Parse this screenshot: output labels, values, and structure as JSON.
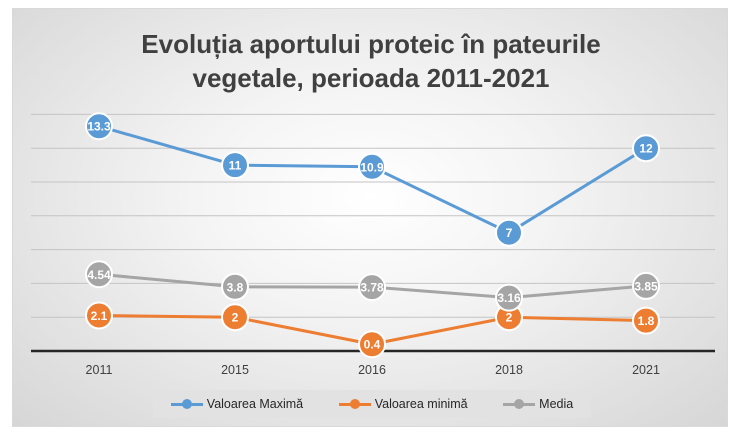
{
  "chart_data": {
    "type": "line",
    "title": "Evoluția aportului proteic în pateurile vegetale, perioada 2011-2021",
    "title_lines": [
      "Evoluția aportului proteic în pateurile",
      "vegetale, perioada 2011-2021"
    ],
    "categories": [
      "2011",
      "2015",
      "2016",
      "2018",
      "2021"
    ],
    "series": [
      {
        "name": "Valoarea Maximă",
        "color": "#5b9bd5",
        "values": [
          13.3,
          11,
          10.9,
          7,
          12
        ],
        "labels": [
          "13.3",
          "11",
          "10.9",
          "7",
          "12"
        ]
      },
      {
        "name": "Valoarea minimă",
        "color": "#ed7d31",
        "values": [
          2.1,
          2,
          0.4,
          2,
          1.8
        ],
        "labels": [
          "2.1",
          "2",
          "0.4",
          "2",
          "1.8"
        ]
      },
      {
        "name": "Media",
        "color": "#a5a5a5",
        "values": [
          4.54,
          3.8,
          3.78,
          3.16,
          3.85
        ],
        "labels": [
          "4.54",
          "3.8",
          "3.78",
          "3.16",
          "3.85"
        ]
      }
    ],
    "ylim": [
      0,
      14
    ],
    "y_axis_labels_shown": false,
    "grid": true,
    "legend_position": "bottom"
  }
}
